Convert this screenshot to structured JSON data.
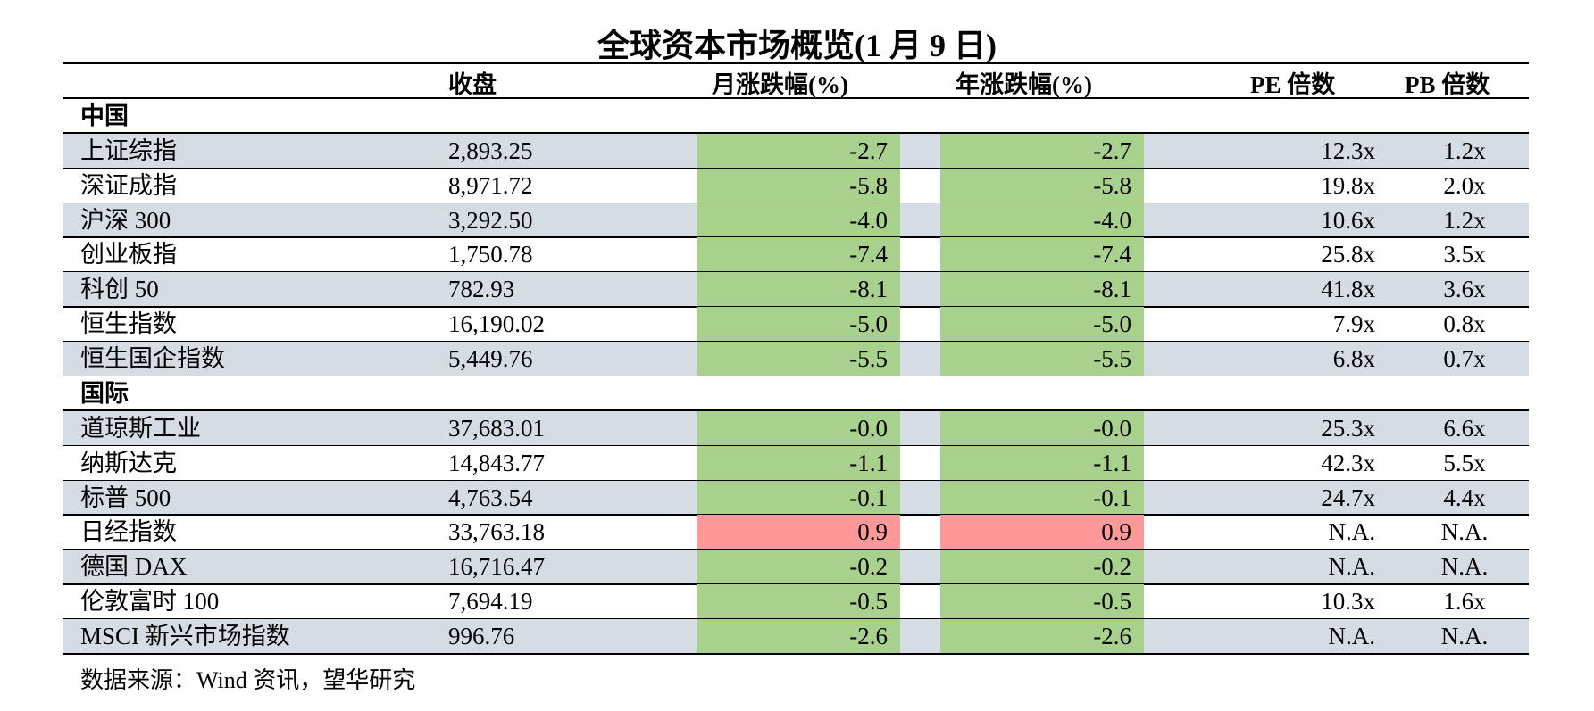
{
  "title": "全球资本市场概览(1 月 9 日)",
  "headers": {
    "close": "收盘",
    "month_change": "月涨跌幅(%)",
    "year_change": "年涨跌幅(%)",
    "pe": "PE 倍数",
    "pb": "PB 倍数"
  },
  "sections": [
    {
      "label": "中国"
    },
    {
      "label": "国际"
    }
  ],
  "rows": [
    {
      "name": "上证综指",
      "close": "2,893.25",
      "month": "-2.7",
      "year": "-2.7",
      "pe": "12.3x",
      "pb": "1.2x"
    },
    {
      "name": "深证成指",
      "close": "8,971.72",
      "month": "-5.8",
      "year": "-5.8",
      "pe": "19.8x",
      "pb": "2.0x"
    },
    {
      "name": "沪深 300",
      "close": "3,292.50",
      "month": "-4.0",
      "year": "-4.0",
      "pe": "10.6x",
      "pb": "1.2x"
    },
    {
      "name": "创业板指",
      "close": "1,750.78",
      "month": "-7.4",
      "year": "-7.4",
      "pe": "25.8x",
      "pb": "3.5x"
    },
    {
      "name": "科创 50",
      "close": "782.93",
      "month": "-8.1",
      "year": "-8.1",
      "pe": "41.8x",
      "pb": "3.6x"
    },
    {
      "name": "恒生指数",
      "close": "16,190.02",
      "month": "-5.0",
      "year": "-5.0",
      "pe": "7.9x",
      "pb": "0.8x"
    },
    {
      "name": "恒生国企指数",
      "close": "5,449.76",
      "month": "-5.5",
      "year": "-5.5",
      "pe": "6.8x",
      "pb": "0.7x"
    },
    {
      "name": "道琼斯工业",
      "close": "37,683.01",
      "month": "-0.0",
      "year": "-0.0",
      "pe": "25.3x",
      "pb": "6.6x"
    },
    {
      "name": "纳斯达克",
      "close": "14,843.77",
      "month": "-1.1",
      "year": "-1.1",
      "pe": "42.3x",
      "pb": "5.5x"
    },
    {
      "name": "标普 500",
      "close": "4,763.54",
      "month": "-0.1",
      "year": "-0.1",
      "pe": "24.7x",
      "pb": "4.4x"
    },
    {
      "name": "日经指数",
      "close": "33,763.18",
      "month": "0.9",
      "year": "0.9",
      "pe": "N.A.",
      "pb": "N.A."
    },
    {
      "name": "德国 DAX",
      "close": "16,716.47",
      "month": "-0.2",
      "year": "-0.2",
      "pe": "N.A.",
      "pb": "N.A."
    },
    {
      "name": "伦敦富时 100",
      "close": "7,694.19",
      "month": "-0.5",
      "year": "-0.5",
      "pe": "10.3x",
      "pb": "1.6x"
    },
    {
      "name": "MSCI 新兴市场指数",
      "close": "996.76",
      "month": "-2.6",
      "year": "-2.6",
      "pe": "N.A.",
      "pb": "N.A."
    }
  ],
  "colors": {
    "positive": "#ff9999",
    "negative": "#a9d18e",
    "shade": "#d6dce4"
  },
  "source": "数据来源：Wind 资讯，望华研究"
}
